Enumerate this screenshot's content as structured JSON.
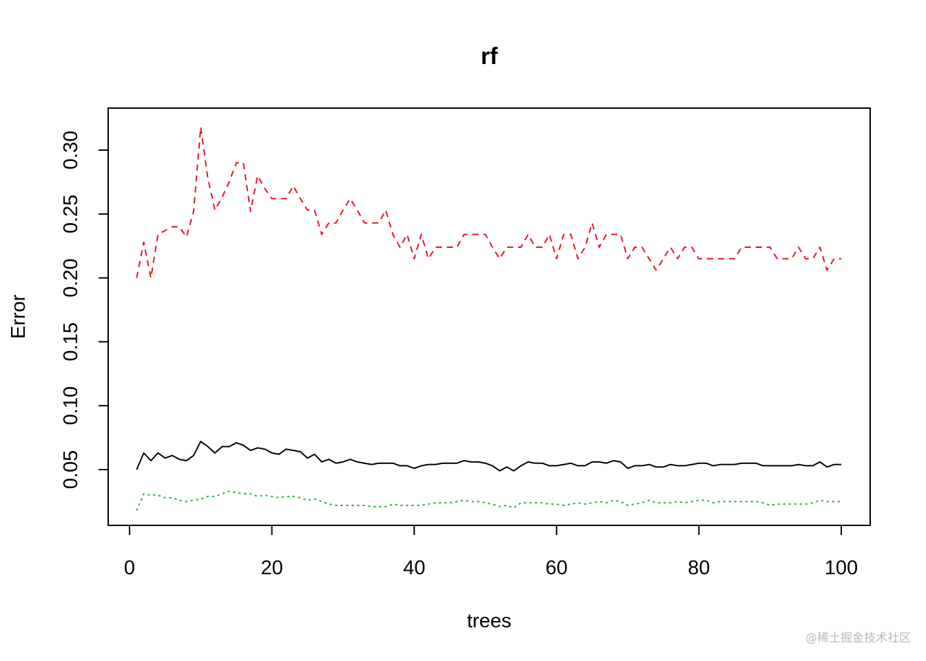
{
  "chart_data": {
    "type": "line",
    "title": "rf",
    "xlabel": "trees",
    "ylabel": "Error",
    "xlim": [
      0,
      100
    ],
    "ylim": [
      0.01,
      0.33
    ],
    "xticks": [
      0,
      20,
      40,
      60,
      80,
      100
    ],
    "yticks": [
      0.05,
      0.1,
      0.15,
      0.2,
      0.25,
      0.3
    ],
    "ytick_labels": [
      "0.05",
      "0.10",
      "0.15",
      "0.20",
      "0.25",
      "0.30"
    ],
    "grid": false,
    "legend": "none",
    "x": [
      1,
      2,
      3,
      4,
      5,
      6,
      7,
      8,
      9,
      10,
      11,
      12,
      13,
      14,
      15,
      16,
      17,
      18,
      19,
      20,
      21,
      22,
      23,
      24,
      25,
      26,
      27,
      28,
      29,
      30,
      31,
      32,
      33,
      34,
      35,
      36,
      37,
      38,
      39,
      40,
      41,
      42,
      43,
      44,
      45,
      46,
      47,
      48,
      49,
      50,
      51,
      52,
      53,
      54,
      55,
      56,
      57,
      58,
      59,
      60,
      61,
      62,
      63,
      64,
      65,
      66,
      67,
      68,
      69,
      70,
      71,
      72,
      73,
      74,
      75,
      76,
      77,
      78,
      79,
      80,
      81,
      82,
      83,
      84,
      85,
      86,
      87,
      88,
      89,
      90,
      91,
      92,
      93,
      94,
      95,
      96,
      97,
      98,
      99,
      100
    ],
    "series": [
      {
        "color": "#000000",
        "linestyle": "solid",
        "values": [
          0.05,
          0.063,
          0.057,
          0.063,
          0.059,
          0.061,
          0.058,
          0.057,
          0.061,
          0.072,
          0.068,
          0.063,
          0.068,
          0.068,
          0.071,
          0.069,
          0.065,
          0.067,
          0.066,
          0.063,
          0.062,
          0.066,
          0.065,
          0.064,
          0.059,
          0.062,
          0.056,
          0.058,
          0.055,
          0.056,
          0.058,
          0.056,
          0.055,
          0.054,
          0.055,
          0.055,
          0.055,
          0.053,
          0.053,
          0.051,
          0.053,
          0.054,
          0.054,
          0.055,
          0.055,
          0.055,
          0.057,
          0.056,
          0.056,
          0.055,
          0.053,
          0.049,
          0.052,
          0.049,
          0.053,
          0.056,
          0.055,
          0.055,
          0.053,
          0.053,
          0.054,
          0.055,
          0.053,
          0.053,
          0.056,
          0.056,
          0.055,
          0.057,
          0.056,
          0.051,
          0.053,
          0.053,
          0.054,
          0.052,
          0.052,
          0.054,
          0.053,
          0.053,
          0.054,
          0.055,
          0.055,
          0.053,
          0.054,
          0.054,
          0.054,
          0.055,
          0.055,
          0.055,
          0.053,
          0.053,
          0.053,
          0.053,
          0.053,
          0.054,
          0.053,
          0.053,
          0.056,
          0.052,
          0.054,
          0.054
        ]
      },
      {
        "color": "#e8111b",
        "linestyle": "dashed",
        "values": [
          0.2,
          0.228,
          0.2,
          0.234,
          0.237,
          0.24,
          0.24,
          0.232,
          0.252,
          0.318,
          0.278,
          0.253,
          0.263,
          0.275,
          0.29,
          0.29,
          0.252,
          0.28,
          0.27,
          0.262,
          0.262,
          0.262,
          0.272,
          0.262,
          0.253,
          0.253,
          0.234,
          0.243,
          0.243,
          0.253,
          0.262,
          0.253,
          0.243,
          0.243,
          0.243,
          0.253,
          0.234,
          0.224,
          0.234,
          0.215,
          0.234,
          0.215,
          0.224,
          0.224,
          0.224,
          0.224,
          0.234,
          0.234,
          0.234,
          0.234,
          0.224,
          0.215,
          0.224,
          0.224,
          0.224,
          0.234,
          0.224,
          0.224,
          0.234,
          0.215,
          0.234,
          0.234,
          0.215,
          0.224,
          0.243,
          0.224,
          0.234,
          0.234,
          0.234,
          0.215,
          0.224,
          0.224,
          0.215,
          0.206,
          0.215,
          0.224,
          0.215,
          0.224,
          0.224,
          0.215,
          0.215,
          0.215,
          0.215,
          0.215,
          0.215,
          0.224,
          0.224,
          0.224,
          0.224,
          0.224,
          0.215,
          0.215,
          0.215,
          0.224,
          0.215,
          0.215,
          0.224,
          0.206,
          0.215,
          0.215
        ]
      },
      {
        "color": "#1aac2b",
        "linestyle": "dotted",
        "values": [
          0.018,
          0.031,
          0.03,
          0.03,
          0.028,
          0.028,
          0.026,
          0.025,
          0.026,
          0.027,
          0.029,
          0.029,
          0.031,
          0.033,
          0.032,
          0.031,
          0.031,
          0.029,
          0.03,
          0.029,
          0.028,
          0.029,
          0.029,
          0.028,
          0.026,
          0.027,
          0.025,
          0.023,
          0.022,
          0.022,
          0.022,
          0.022,
          0.022,
          0.021,
          0.021,
          0.021,
          0.023,
          0.022,
          0.022,
          0.022,
          0.022,
          0.023,
          0.024,
          0.024,
          0.024,
          0.025,
          0.026,
          0.025,
          0.025,
          0.024,
          0.023,
          0.021,
          0.022,
          0.02,
          0.024,
          0.024,
          0.024,
          0.024,
          0.023,
          0.023,
          0.022,
          0.023,
          0.024,
          0.023,
          0.024,
          0.025,
          0.024,
          0.026,
          0.025,
          0.022,
          0.023,
          0.024,
          0.026,
          0.024,
          0.024,
          0.024,
          0.025,
          0.024,
          0.025,
          0.026,
          0.026,
          0.024,
          0.025,
          0.025,
          0.025,
          0.025,
          0.025,
          0.025,
          0.024,
          0.022,
          0.023,
          0.023,
          0.023,
          0.023,
          0.023,
          0.024,
          0.026,
          0.025,
          0.025,
          0.025
        ]
      }
    ]
  },
  "watermark": "@稀土掘金技术社区"
}
